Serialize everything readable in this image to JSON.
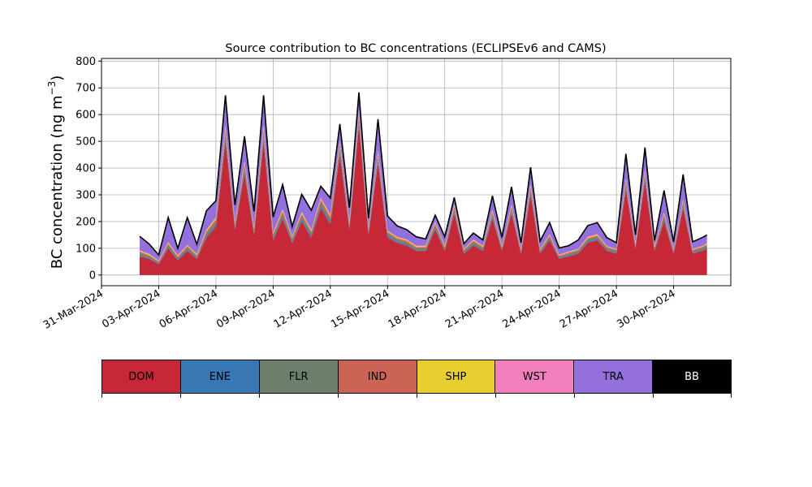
{
  "chart_data": {
    "type": "area",
    "stacked": true,
    "title": "Source contribution to BC concentrations (ECLIPSEv6 and CAMS)",
    "ylabel_main": "BC concentration (ng m",
    "ylabel_sup": "−3",
    "ylabel_close": ")",
    "xlabel": "",
    "ylim": [
      -40,
      810
    ],
    "xlim": [
      "2024-03-31",
      "2024-05-03"
    ],
    "grid": true,
    "legend_placement": "below",
    "yticks": [
      0,
      100,
      200,
      300,
      400,
      500,
      600,
      700,
      800
    ],
    "ytick_labels": [
      "0",
      "100",
      "200",
      "300",
      "400",
      "500",
      "600",
      "700",
      "800"
    ],
    "xticks": [
      "2024-03-31",
      "2024-04-03",
      "2024-04-06",
      "2024-04-09",
      "2024-04-12",
      "2024-04-15",
      "2024-04-18",
      "2024-04-21",
      "2024-04-24",
      "2024-04-27",
      "2024-04-30"
    ],
    "xtick_labels": [
      "31-Mar-2024",
      "03-Apr-2024",
      "06-Apr-2024",
      "09-Apr-2024",
      "12-Apr-2024",
      "15-Apr-2024",
      "18-Apr-2024",
      "21-Apr-2024",
      "24-Apr-2024",
      "27-Apr-2024",
      "30-Apr-2024"
    ],
    "x": [
      "2024-04-02T00:00",
      "2024-04-02T12:00",
      "2024-04-03T00:00",
      "2024-04-03T12:00",
      "2024-04-04T00:00",
      "2024-04-04T12:00",
      "2024-04-05T00:00",
      "2024-04-05T12:00",
      "2024-04-06T00:00",
      "2024-04-06T12:00",
      "2024-04-07T00:00",
      "2024-04-07T12:00",
      "2024-04-08T00:00",
      "2024-04-08T12:00",
      "2024-04-09T00:00",
      "2024-04-09T12:00",
      "2024-04-10T00:00",
      "2024-04-10T12:00",
      "2024-04-11T00:00",
      "2024-04-11T12:00",
      "2024-04-12T00:00",
      "2024-04-12T12:00",
      "2024-04-13T00:00",
      "2024-04-13T12:00",
      "2024-04-14T00:00",
      "2024-04-14T12:00",
      "2024-04-15T00:00",
      "2024-04-15T12:00",
      "2024-04-16T00:00",
      "2024-04-16T12:00",
      "2024-04-17T00:00",
      "2024-04-17T12:00",
      "2024-04-18T00:00",
      "2024-04-18T12:00",
      "2024-04-19T00:00",
      "2024-04-19T12:00",
      "2024-04-20T00:00",
      "2024-04-20T12:00",
      "2024-04-21T00:00",
      "2024-04-21T12:00",
      "2024-04-22T00:00",
      "2024-04-22T12:00",
      "2024-04-23T00:00",
      "2024-04-23T12:00",
      "2024-04-24T00:00",
      "2024-04-24T12:00",
      "2024-04-25T00:00",
      "2024-04-25T12:00",
      "2024-04-26T00:00",
      "2024-04-26T12:00",
      "2024-04-27T00:00",
      "2024-04-27T12:00",
      "2024-04-28T00:00",
      "2024-04-28T12:00",
      "2024-04-29T00:00",
      "2024-04-29T12:00",
      "2024-04-30T00:00",
      "2024-04-30T12:00",
      "2024-05-01T00:00",
      "2024-05-01T12:00",
      "2024-05-01T18:00"
    ],
    "series": [
      {
        "name": "DOM",
        "color": "#c62838",
        "values": [
          70,
          60,
          40,
          100,
          55,
          90,
          60,
          140,
          180,
          500,
          170,
          380,
          150,
          500,
          130,
          210,
          120,
          200,
          140,
          250,
          190,
          450,
          170,
          560,
          150,
          420,
          140,
          120,
          110,
          90,
          90,
          170,
          90,
          230,
          80,
          110,
          90,
          210,
          90,
          230,
          80,
          300,
          80,
          130,
          60,
          70,
          80,
          120,
          130,
          90,
          80,
          320,
          100,
          350,
          90,
          200,
          80,
          250,
          80,
          90,
          100
        ]
      },
      {
        "name": "ENE",
        "color": "#3a78b5",
        "values": [
          4,
          3,
          2,
          4,
          3,
          4,
          3,
          5,
          6,
          10,
          5,
          8,
          5,
          10,
          5,
          6,
          4,
          6,
          5,
          7,
          6,
          9,
          5,
          10,
          5,
          8,
          5,
          4,
          4,
          3,
          3,
          5,
          3,
          6,
          3,
          4,
          3,
          6,
          3,
          6,
          3,
          7,
          3,
          4,
          3,
          3,
          3,
          4,
          4,
          3,
          3,
          7,
          3,
          8,
          3,
          6,
          3,
          6,
          3,
          3,
          3
        ]
      },
      {
        "name": "FLR",
        "color": "#6e7e6d",
        "values": [
          8,
          6,
          5,
          8,
          6,
          8,
          6,
          10,
          12,
          20,
          10,
          16,
          10,
          20,
          10,
          12,
          9,
          12,
          10,
          14,
          12,
          18,
          10,
          20,
          10,
          16,
          9,
          8,
          8,
          7,
          7,
          10,
          7,
          12,
          6,
          8,
          7,
          12,
          7,
          12,
          6,
          14,
          6,
          8,
          5,
          6,
          6,
          8,
          8,
          7,
          6,
          14,
          7,
          15,
          6,
          12,
          6,
          12,
          6,
          7,
          7
        ]
      },
      {
        "name": "IND",
        "color": "#cc6456",
        "values": [
          6,
          5,
          4,
          6,
          5,
          6,
          5,
          8,
          10,
          16,
          8,
          12,
          8,
          16,
          8,
          10,
          7,
          10,
          8,
          11,
          10,
          14,
          8,
          16,
          8,
          12,
          7,
          6,
          6,
          5,
          5,
          8,
          5,
          9,
          5,
          6,
          5,
          9,
          5,
          9,
          5,
          11,
          5,
          6,
          4,
          5,
          5,
          6,
          6,
          5,
          5,
          11,
          5,
          12,
          5,
          9,
          5,
          9,
          5,
          5,
          5
        ]
      },
      {
        "name": "SHP",
        "color": "#e8cf30",
        "values": [
          3,
          3,
          2,
          3,
          3,
          3,
          3,
          4,
          5,
          8,
          4,
          6,
          4,
          8,
          4,
          5,
          3,
          5,
          4,
          5,
          5,
          7,
          4,
          8,
          4,
          6,
          3,
          3,
          3,
          3,
          3,
          4,
          3,
          4,
          2,
          3,
          3,
          4,
          3,
          4,
          2,
          5,
          2,
          3,
          2,
          2,
          2,
          3,
          3,
          2,
          2,
          5,
          3,
          6,
          2,
          4,
          2,
          4,
          2,
          2,
          2
        ]
      },
      {
        "name": "WST",
        "color": "#f280be",
        "values": [
          2,
          2,
          1,
          2,
          2,
          2,
          2,
          3,
          3,
          5,
          3,
          4,
          3,
          5,
          3,
          3,
          2,
          3,
          3,
          3,
          3,
          4,
          3,
          5,
          2,
          4,
          2,
          2,
          2,
          2,
          2,
          3,
          2,
          3,
          2,
          2,
          2,
          3,
          2,
          3,
          2,
          4,
          2,
          2,
          2,
          2,
          2,
          2,
          2,
          2,
          2,
          4,
          2,
          4,
          2,
          3,
          2,
          3,
          2,
          2,
          2
        ]
      },
      {
        "name": "TRA",
        "color": "#9370db",
        "values": [
          50,
          35,
          20,
          90,
          25,
          100,
          35,
          68,
          60,
          110,
          60,
          90,
          56,
          110,
          55,
          90,
          35,
          64,
          70,
          40,
          60,
          60,
          50,
          61,
          32,
          114,
          54,
          40,
          36,
          32,
          24,
          22,
          32,
          24,
          18,
          23,
          20,
          50,
          30,
          64,
          22,
          60,
          28,
          42,
          24,
          21,
          32,
          41,
          42,
          30,
          22,
          90,
          30,
          80,
          20,
          80,
          25,
          90,
          25,
          30,
          30
        ]
      },
      {
        "name": "BB",
        "color": "#000000",
        "values": [
          2,
          2,
          1,
          2,
          1,
          2,
          1,
          2,
          2,
          3,
          2,
          3,
          2,
          3,
          2,
          2,
          1,
          2,
          2,
          2,
          2,
          3,
          2,
          3,
          2,
          3,
          1,
          1,
          1,
          1,
          1,
          2,
          1,
          2,
          1,
          1,
          1,
          2,
          1,
          2,
          1,
          2,
          1,
          1,
          1,
          1,
          1,
          1,
          1,
          1,
          1,
          2,
          1,
          2,
          1,
          2,
          1,
          2,
          1,
          1,
          1
        ]
      }
    ]
  },
  "legend": [
    {
      "label": "DOM",
      "color": "#c62838",
      "text_color": "#000000"
    },
    {
      "label": "ENE",
      "color": "#3a78b5",
      "text_color": "#000000"
    },
    {
      "label": "FLR",
      "color": "#6e7e6d",
      "text_color": "#000000"
    },
    {
      "label": "IND",
      "color": "#cc6456",
      "text_color": "#000000"
    },
    {
      "label": "SHP",
      "color": "#e8cf30",
      "text_color": "#000000"
    },
    {
      "label": "WST",
      "color": "#f280be",
      "text_color": "#000000"
    },
    {
      "label": "TRA",
      "color": "#9370db",
      "text_color": "#000000"
    },
    {
      "label": "BB",
      "color": "#000000",
      "text_color": "#ffffff"
    }
  ]
}
